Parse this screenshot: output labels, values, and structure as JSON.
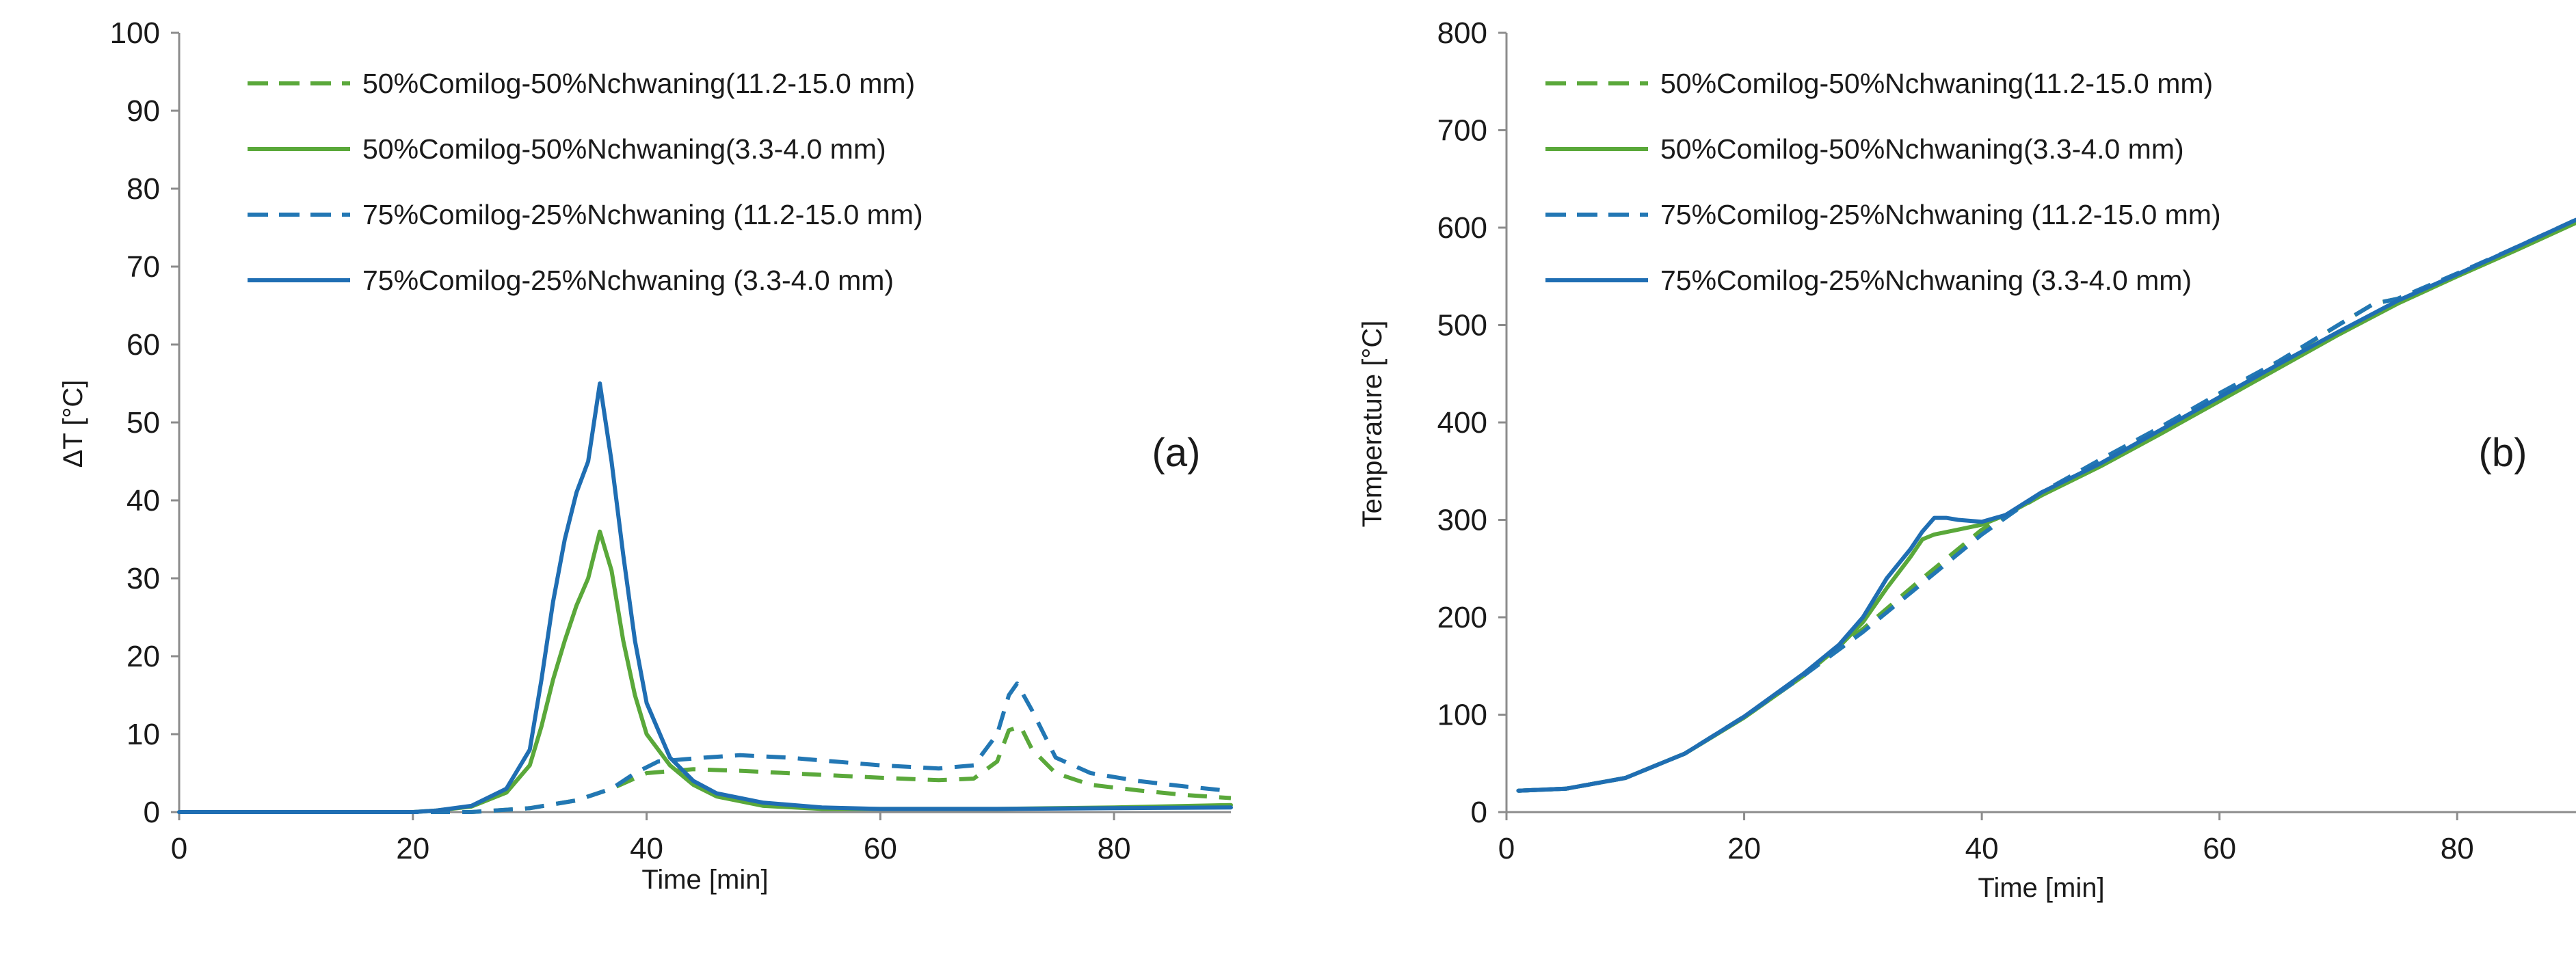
{
  "figure": {
    "colors": {
      "green": "#5aa83a",
      "blue": "#1f6eb3",
      "blue_dash": "#2277b4",
      "axis": "#8c8c8c"
    },
    "legend": [
      {
        "label": "50%Comilog-50%Nchwaning(11.2-15.0 mm)",
        "color": "#5aa83a",
        "dashed": true
      },
      {
        "label": "50%Comilog-50%Nchwaning(3.3-4.0 mm)",
        "color": "#5aa83a",
        "dashed": false
      },
      {
        "label": "75%Comilog-25%Nchwaning (11.2-15.0 mm)",
        "color": "#2277b4",
        "dashed": true
      },
      {
        "label": "75%Comilog-25%Nchwaning (3.3-4.0 mm)",
        "color": "#1f6eb3",
        "dashed": false
      }
    ]
  },
  "chart_data": [
    {
      "type": "line",
      "panel": "(a)",
      "title": "",
      "xlabel": "Time [min]",
      "ylabel": "ΔT [°C]",
      "xlim": [
        0,
        90
      ],
      "ylim": [
        0,
        100
      ],
      "xticks": [
        0,
        20,
        40,
        60,
        80
      ],
      "yticks": [
        0,
        10,
        20,
        30,
        40,
        50,
        60,
        70,
        80,
        90,
        100
      ],
      "legend_position": "top-left",
      "series": [
        {
          "name": "50%Comilog-50%Nchwaning(11.2-15.0 mm)",
          "dashed": true,
          "color": "#5aa83a",
          "points": [
            [
              0,
              0
            ],
            [
              20,
              0
            ],
            [
              25,
              0
            ],
            [
              30,
              0.5
            ],
            [
              34,
              1.5
            ],
            [
              37,
              3
            ],
            [
              40,
              5
            ],
            [
              44,
              5.5
            ],
            [
              48,
              5.3
            ],
            [
              52,
              5
            ],
            [
              56,
              4.7
            ],
            [
              60,
              4.4
            ],
            [
              65,
              4.1
            ],
            [
              68,
              4.3
            ],
            [
              70,
              6.5
            ],
            [
              71,
              10.5
            ],
            [
              72,
              11
            ],
            [
              73,
              8
            ],
            [
              75,
              5
            ],
            [
              78,
              3.5
            ],
            [
              82,
              2.8
            ],
            [
              86,
              2.2
            ],
            [
              90,
              1.8
            ]
          ]
        },
        {
          "name": "50%Comilog-50%Nchwaning(3.3-4.0 mm)",
          "dashed": false,
          "color": "#5aa83a",
          "points": [
            [
              0,
              0
            ],
            [
              20,
              0
            ],
            [
              22,
              0.2
            ],
            [
              25,
              0.7
            ],
            [
              28,
              2.5
            ],
            [
              30,
              6
            ],
            [
              31,
              11
            ],
            [
              32,
              17
            ],
            [
              33,
              22
            ],
            [
              34,
              26.5
            ],
            [
              35,
              30
            ],
            [
              36,
              36
            ],
            [
              37,
              31
            ],
            [
              38,
              22
            ],
            [
              39,
              15
            ],
            [
              40,
              10
            ],
            [
              42,
              6
            ],
            [
              44,
              3.5
            ],
            [
              46,
              2
            ],
            [
              50,
              0.8
            ],
            [
              55,
              0.4
            ],
            [
              60,
              0.4
            ],
            [
              70,
              0.4
            ],
            [
              80,
              0.6
            ],
            [
              90,
              0.9
            ]
          ]
        },
        {
          "name": "75%Comilog-25%Nchwaning (11.2-15.0 mm)",
          "dashed": true,
          "color": "#2277b4",
          "points": [
            [
              0,
              0
            ],
            [
              20,
              0
            ],
            [
              25,
              0
            ],
            [
              30,
              0.5
            ],
            [
              34,
              1.5
            ],
            [
              37,
              3
            ],
            [
              39,
              5
            ],
            [
              41,
              6.5
            ],
            [
              45,
              7
            ],
            [
              48,
              7.3
            ],
            [
              52,
              7
            ],
            [
              56,
              6.5
            ],
            [
              60,
              6
            ],
            [
              65,
              5.6
            ],
            [
              68,
              6
            ],
            [
              70,
              10
            ],
            [
              71,
              15
            ],
            [
              71.7,
              16.5
            ],
            [
              73,
              13
            ],
            [
              75,
              7
            ],
            [
              78,
              5
            ],
            [
              82,
              4
            ],
            [
              86,
              3.3
            ],
            [
              90,
              2.7
            ]
          ]
        },
        {
          "name": "75%Comilog-25%Nchwaning (3.3-4.0 mm)",
          "dashed": false,
          "color": "#1f6eb3",
          "points": [
            [
              0,
              0
            ],
            [
              20,
              0
            ],
            [
              22,
              0.2
            ],
            [
              25,
              0.8
            ],
            [
              28,
              3
            ],
            [
              30,
              8
            ],
            [
              31,
              17
            ],
            [
              32,
              27
            ],
            [
              33,
              35
            ],
            [
              34,
              41
            ],
            [
              35,
              45
            ],
            [
              36,
              55
            ],
            [
              37,
              45
            ],
            [
              38,
              33
            ],
            [
              39,
              22
            ],
            [
              40,
              14
            ],
            [
              42,
              7
            ],
            [
              44,
              4
            ],
            [
              46,
              2.4
            ],
            [
              50,
              1.2
            ],
            [
              55,
              0.6
            ],
            [
              60,
              0.4
            ],
            [
              70,
              0.4
            ],
            [
              80,
              0.5
            ],
            [
              90,
              0.6
            ]
          ]
        }
      ]
    },
    {
      "type": "line",
      "panel": "(b)",
      "title": "",
      "xlabel": "Time [min]",
      "ylabel": "Temperature [°C]",
      "xlim": [
        0,
        90
      ],
      "ylim": [
        0,
        800
      ],
      "xticks": [
        0,
        20,
        40,
        60,
        80
      ],
      "yticks": [
        0,
        100,
        200,
        300,
        400,
        500,
        600,
        700,
        800
      ],
      "legend_position": "top-left",
      "series": [
        {
          "name": "50%Comilog-50%Nchwaning(11.2-15.0 mm)",
          "dashed": true,
          "color": "#5aa83a",
          "points": [
            [
              1,
              22
            ],
            [
              5,
              24
            ],
            [
              10,
              35
            ],
            [
              15,
              60
            ],
            [
              20,
              98
            ],
            [
              25,
              140
            ],
            [
              30,
              188
            ],
            [
              35,
              240
            ],
            [
              40,
              290
            ],
            [
              45,
              325
            ],
            [
              50,
              360
            ],
            [
              55,
              393
            ],
            [
              60,
              428
            ],
            [
              65,
              462
            ],
            [
              70,
              500
            ],
            [
              73,
              522
            ],
            [
              75,
              527
            ],
            [
              80,
              552
            ],
            [
              85,
              580
            ],
            [
              90,
              608
            ]
          ]
        },
        {
          "name": "50%Comilog-50%Nchwaning(3.3-4.0 mm)",
          "dashed": false,
          "color": "#5aa83a",
          "points": [
            [
              1,
              22
            ],
            [
              5,
              24
            ],
            [
              10,
              35
            ],
            [
              15,
              60
            ],
            [
              20,
              97
            ],
            [
              25,
              140
            ],
            [
              28,
              170
            ],
            [
              30,
              195
            ],
            [
              32,
              230
            ],
            [
              34,
              262
            ],
            [
              35,
              280
            ],
            [
              36,
              285
            ],
            [
              38,
              290
            ],
            [
              40,
              295
            ],
            [
              42,
              305
            ],
            [
              45,
              325
            ],
            [
              50,
              355
            ],
            [
              55,
              388
            ],
            [
              60,
              422
            ],
            [
              65,
              456
            ],
            [
              70,
              490
            ],
            [
              75,
              522
            ],
            [
              80,
              550
            ],
            [
              85,
              577
            ],
            [
              90,
              605
            ]
          ]
        },
        {
          "name": "75%Comilog-25%Nchwaning (11.2-15.0 mm)",
          "dashed": true,
          "color": "#2277b4",
          "points": [
            [
              1,
              22
            ],
            [
              5,
              24
            ],
            [
              10,
              35
            ],
            [
              15,
              60
            ],
            [
              20,
              98
            ],
            [
              25,
              140
            ],
            [
              30,
              185
            ],
            [
              35,
              235
            ],
            [
              40,
              285
            ],
            [
              45,
              328
            ],
            [
              50,
              362
            ],
            [
              55,
              395
            ],
            [
              60,
              430
            ],
            [
              65,
              463
            ],
            [
              70,
              500
            ],
            [
              73,
              522
            ],
            [
              75,
              527
            ],
            [
              80,
              553
            ],
            [
              85,
              580
            ],
            [
              90,
              608
            ]
          ]
        },
        {
          "name": "75%Comilog-25%Nchwaning (3.3-4.0 mm)",
          "dashed": false,
          "color": "#1f6eb3",
          "points": [
            [
              1,
              22
            ],
            [
              5,
              24
            ],
            [
              10,
              35
            ],
            [
              15,
              60
            ],
            [
              20,
              98
            ],
            [
              25,
              142
            ],
            [
              28,
              172
            ],
            [
              30,
              200
            ],
            [
              32,
              240
            ],
            [
              34,
              270
            ],
            [
              35,
              288
            ],
            [
              36,
              302
            ],
            [
              37,
              302
            ],
            [
              38,
              300
            ],
            [
              40,
              298
            ],
            [
              42,
              305
            ],
            [
              45,
              328
            ],
            [
              50,
              358
            ],
            [
              55,
              392
            ],
            [
              60,
              426
            ],
            [
              65,
              460
            ],
            [
              70,
              493
            ],
            [
              75,
              525
            ],
            [
              80,
              552
            ],
            [
              85,
              580
            ],
            [
              90,
              608
            ]
          ]
        }
      ]
    }
  ]
}
